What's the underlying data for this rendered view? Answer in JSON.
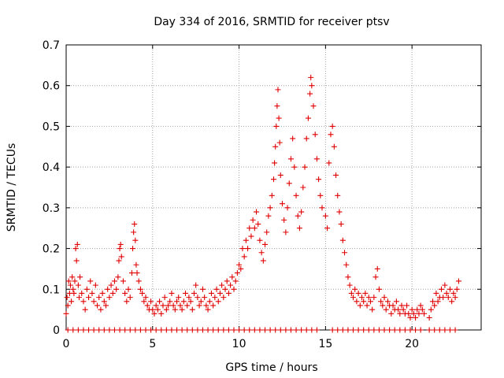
{
  "chart_data": {
    "type": "scatter",
    "title": "Day 334 of 2016, SRMTID for receiver ptsv",
    "xlabel": "GPS time / hours",
    "ylabel": "SRMTID / TECUs",
    "xlim": [
      0,
      24
    ],
    "ylim": [
      0,
      0.7
    ],
    "xticks": [
      0,
      5,
      10,
      15,
      20
    ],
    "xtick_labels": [
      "0",
      "5",
      "10",
      "15",
      "20"
    ],
    "yticks": [
      0,
      0.1,
      0.2,
      0.3,
      0.4,
      0.5,
      0.6,
      0.7
    ],
    "ytick_labels": [
      "0",
      "0.1",
      "0.2",
      "0.3",
      "0.4",
      "0.5",
      "0.6",
      "0.7"
    ],
    "grid": true,
    "marker": "+",
    "color": "#e00000",
    "series": [
      {
        "name": "ptsv",
        "points": [
          [
            0.0,
            0.04
          ],
          [
            0.05,
            0.08
          ],
          [
            0.1,
            0.06
          ],
          [
            0.15,
            0.12
          ],
          [
            0.2,
            0.09
          ],
          [
            0.25,
            0.11
          ],
          [
            0.3,
            0.07
          ],
          [
            0.35,
            0.13
          ],
          [
            0.4,
            0.1
          ],
          [
            0.45,
            0.09
          ],
          [
            0.5,
            0.12
          ],
          [
            0.55,
            0.2
          ],
          [
            0.6,
            0.17
          ],
          [
            0.65,
            0.21
          ],
          [
            0.7,
            0.11
          ],
          [
            0.75,
            0.08
          ],
          [
            0.8,
            0.13
          ],
          [
            0.9,
            0.09
          ],
          [
            1.0,
            0.07
          ],
          [
            1.1,
            0.05
          ],
          [
            1.2,
            0.1
          ],
          [
            1.3,
            0.08
          ],
          [
            1.4,
            0.12
          ],
          [
            1.5,
            0.09
          ],
          [
            1.6,
            0.07
          ],
          [
            1.7,
            0.11
          ],
          [
            1.8,
            0.06
          ],
          [
            1.9,
            0.08
          ],
          [
            2.0,
            0.05
          ],
          [
            2.1,
            0.09
          ],
          [
            2.2,
            0.07
          ],
          [
            2.3,
            0.06
          ],
          [
            2.4,
            0.1
          ],
          [
            2.5,
            0.08
          ],
          [
            2.6,
            0.11
          ],
          [
            2.7,
            0.09
          ],
          [
            2.8,
            0.12
          ],
          [
            2.9,
            0.1
          ],
          [
            3.0,
            0.13
          ],
          [
            3.05,
            0.17
          ],
          [
            3.1,
            0.2
          ],
          [
            3.15,
            0.21
          ],
          [
            3.2,
            0.18
          ],
          [
            3.3,
            0.12
          ],
          [
            3.4,
            0.09
          ],
          [
            3.5,
            0.07
          ],
          [
            3.6,
            0.1
          ],
          [
            3.7,
            0.08
          ],
          [
            3.8,
            0.14
          ],
          [
            3.85,
            0.2
          ],
          [
            3.9,
            0.24
          ],
          [
            3.95,
            0.26
          ],
          [
            4.0,
            0.22
          ],
          [
            4.05,
            0.16
          ],
          [
            4.1,
            0.14
          ],
          [
            4.2,
            0.12
          ],
          [
            4.3,
            0.1
          ],
          [
            4.4,
            0.09
          ],
          [
            4.5,
            0.07
          ],
          [
            4.6,
            0.08
          ],
          [
            4.7,
            0.06
          ],
          [
            4.8,
            0.05
          ],
          [
            4.9,
            0.07
          ],
          [
            5.0,
            0.05
          ],
          [
            5.1,
            0.04
          ],
          [
            5.2,
            0.06
          ],
          [
            5.3,
            0.05
          ],
          [
            5.4,
            0.07
          ],
          [
            5.5,
            0.04
          ],
          [
            5.6,
            0.06
          ],
          [
            5.7,
            0.08
          ],
          [
            5.8,
            0.05
          ],
          [
            5.9,
            0.06
          ],
          [
            6.0,
            0.07
          ],
          [
            6.1,
            0.09
          ],
          [
            6.2,
            0.06
          ],
          [
            6.3,
            0.05
          ],
          [
            6.4,
            0.07
          ],
          [
            6.5,
            0.08
          ],
          [
            6.6,
            0.06
          ],
          [
            6.7,
            0.05
          ],
          [
            6.8,
            0.07
          ],
          [
            6.9,
            0.09
          ],
          [
            7.0,
            0.06
          ],
          [
            7.1,
            0.08
          ],
          [
            7.2,
            0.07
          ],
          [
            7.3,
            0.05
          ],
          [
            7.4,
            0.09
          ],
          [
            7.5,
            0.11
          ],
          [
            7.6,
            0.08
          ],
          [
            7.7,
            0.06
          ],
          [
            7.8,
            0.07
          ],
          [
            7.9,
            0.1
          ],
          [
            8.0,
            0.08
          ],
          [
            8.1,
            0.06
          ],
          [
            8.2,
            0.05
          ],
          [
            8.3,
            0.07
          ],
          [
            8.4,
            0.09
          ],
          [
            8.5,
            0.06
          ],
          [
            8.6,
            0.08
          ],
          [
            8.7,
            0.1
          ],
          [
            8.8,
            0.07
          ],
          [
            8.9,
            0.09
          ],
          [
            9.0,
            0.11
          ],
          [
            9.1,
            0.08
          ],
          [
            9.2,
            0.1
          ],
          [
            9.3,
            0.12
          ],
          [
            9.4,
            0.09
          ],
          [
            9.5,
            0.11
          ],
          [
            9.6,
            0.13
          ],
          [
            9.7,
            0.1
          ],
          [
            9.8,
            0.12
          ],
          [
            9.9,
            0.14
          ],
          [
            10.0,
            0.16
          ],
          [
            10.1,
            0.15
          ],
          [
            10.2,
            0.2
          ],
          [
            10.3,
            0.18
          ],
          [
            10.4,
            0.22
          ],
          [
            10.5,
            0.2
          ],
          [
            10.6,
            0.25
          ],
          [
            10.7,
            0.23
          ],
          [
            10.8,
            0.27
          ],
          [
            10.9,
            0.25
          ],
          [
            11.0,
            0.29
          ],
          [
            11.1,
            0.26
          ],
          [
            11.2,
            0.22
          ],
          [
            11.3,
            0.19
          ],
          [
            11.4,
            0.17
          ],
          [
            11.5,
            0.21
          ],
          [
            11.6,
            0.24
          ],
          [
            11.7,
            0.28
          ],
          [
            11.8,
            0.3
          ],
          [
            11.9,
            0.33
          ],
          [
            12.0,
            0.37
          ],
          [
            12.05,
            0.41
          ],
          [
            12.1,
            0.45
          ],
          [
            12.15,
            0.5
          ],
          [
            12.2,
            0.55
          ],
          [
            12.25,
            0.59
          ],
          [
            12.3,
            0.52
          ],
          [
            12.35,
            0.46
          ],
          [
            12.4,
            0.38
          ],
          [
            12.5,
            0.31
          ],
          [
            12.6,
            0.27
          ],
          [
            12.7,
            0.24
          ],
          [
            12.8,
            0.3
          ],
          [
            12.9,
            0.36
          ],
          [
            13.0,
            0.42
          ],
          [
            13.1,
            0.47
          ],
          [
            13.2,
            0.4
          ],
          [
            13.3,
            0.33
          ],
          [
            13.4,
            0.28
          ],
          [
            13.5,
            0.25
          ],
          [
            13.6,
            0.29
          ],
          [
            13.7,
            0.35
          ],
          [
            13.8,
            0.4
          ],
          [
            13.9,
            0.47
          ],
          [
            14.0,
            0.52
          ],
          [
            14.1,
            0.58
          ],
          [
            14.15,
            0.62
          ],
          [
            14.2,
            0.6
          ],
          [
            14.3,
            0.55
          ],
          [
            14.4,
            0.48
          ],
          [
            14.5,
            0.42
          ],
          [
            14.6,
            0.37
          ],
          [
            14.7,
            0.33
          ],
          [
            14.8,
            0.3
          ],
          [
            15.0,
            0.28
          ],
          [
            15.1,
            0.25
          ],
          [
            15.2,
            0.41
          ],
          [
            15.3,
            0.48
          ],
          [
            15.4,
            0.5
          ],
          [
            15.5,
            0.45
          ],
          [
            15.6,
            0.38
          ],
          [
            15.7,
            0.33
          ],
          [
            15.8,
            0.29
          ],
          [
            15.9,
            0.26
          ],
          [
            16.0,
            0.22
          ],
          [
            16.1,
            0.19
          ],
          [
            16.2,
            0.16
          ],
          [
            16.3,
            0.13
          ],
          [
            16.4,
            0.11
          ],
          [
            16.5,
            0.09
          ],
          [
            16.6,
            0.08
          ],
          [
            16.7,
            0.1
          ],
          [
            16.8,
            0.07
          ],
          [
            16.9,
            0.09
          ],
          [
            17.0,
            0.06
          ],
          [
            17.1,
            0.08
          ],
          [
            17.2,
            0.07
          ],
          [
            17.3,
            0.09
          ],
          [
            17.4,
            0.06
          ],
          [
            17.5,
            0.08
          ],
          [
            17.6,
            0.07
          ],
          [
            17.7,
            0.05
          ],
          [
            17.8,
            0.08
          ],
          [
            17.9,
            0.13
          ],
          [
            18.0,
            0.15
          ],
          [
            18.1,
            0.1
          ],
          [
            18.2,
            0.07
          ],
          [
            18.3,
            0.06
          ],
          [
            18.4,
            0.08
          ],
          [
            18.5,
            0.05
          ],
          [
            18.6,
            0.07
          ],
          [
            18.7,
            0.06
          ],
          [
            18.8,
            0.04
          ],
          [
            18.9,
            0.06
          ],
          [
            19.0,
            0.05
          ],
          [
            19.1,
            0.07
          ],
          [
            19.2,
            0.05
          ],
          [
            19.3,
            0.04
          ],
          [
            19.4,
            0.06
          ],
          [
            19.5,
            0.05
          ],
          [
            19.6,
            0.04
          ],
          [
            19.7,
            0.06
          ],
          [
            19.8,
            0.04
          ],
          [
            19.9,
            0.03
          ],
          [
            20.0,
            0.05
          ],
          [
            20.1,
            0.04
          ],
          [
            20.2,
            0.03
          ],
          [
            20.3,
            0.05
          ],
          [
            20.4,
            0.04
          ],
          [
            20.5,
            0.06
          ],
          [
            20.6,
            0.05
          ],
          [
            20.7,
            0.04
          ],
          [
            21.0,
            0.03
          ],
          [
            21.1,
            0.05
          ],
          [
            21.2,
            0.07
          ],
          [
            21.3,
            0.06
          ],
          [
            21.4,
            0.09
          ],
          [
            21.5,
            0.07
          ],
          [
            21.6,
            0.08
          ],
          [
            21.7,
            0.1
          ],
          [
            21.8,
            0.08
          ],
          [
            21.9,
            0.11
          ],
          [
            22.0,
            0.09
          ],
          [
            22.1,
            0.08
          ],
          [
            22.2,
            0.1
          ],
          [
            22.3,
            0.07
          ],
          [
            22.4,
            0.09
          ],
          [
            22.5,
            0.08
          ],
          [
            22.6,
            0.1
          ],
          [
            22.7,
            0.12
          ],
          [
            0.1,
            0.0
          ],
          [
            0.4,
            0.0
          ],
          [
            0.7,
            0.0
          ],
          [
            1.0,
            0.0
          ],
          [
            1.3,
            0.0
          ],
          [
            1.6,
            0.0
          ],
          [
            1.9,
            0.0
          ],
          [
            2.2,
            0.0
          ],
          [
            2.5,
            0.0
          ],
          [
            2.8,
            0.0
          ],
          [
            3.1,
            0.0
          ],
          [
            3.4,
            0.0
          ],
          [
            3.7,
            0.0
          ],
          [
            4.0,
            0.0
          ],
          [
            4.3,
            0.0
          ],
          [
            4.6,
            0.0
          ],
          [
            4.9,
            0.0
          ],
          [
            5.2,
            0.0
          ],
          [
            5.5,
            0.0
          ],
          [
            5.8,
            0.0
          ],
          [
            6.1,
            0.0
          ],
          [
            6.4,
            0.0
          ],
          [
            6.7,
            0.0
          ],
          [
            7.0,
            0.0
          ],
          [
            7.3,
            0.0
          ],
          [
            7.6,
            0.0
          ],
          [
            7.9,
            0.0
          ],
          [
            8.2,
            0.0
          ],
          [
            8.5,
            0.0
          ],
          [
            8.8,
            0.0
          ],
          [
            9.1,
            0.0
          ],
          [
            9.4,
            0.0
          ],
          [
            9.7,
            0.0
          ],
          [
            10.0,
            0.0
          ],
          [
            10.3,
            0.0
          ],
          [
            10.6,
            0.0
          ],
          [
            10.9,
            0.0
          ],
          [
            11.2,
            0.0
          ],
          [
            11.5,
            0.0
          ],
          [
            11.8,
            0.0
          ],
          [
            12.1,
            0.0
          ],
          [
            12.4,
            0.0
          ],
          [
            12.7,
            0.0
          ],
          [
            13.0,
            0.0
          ],
          [
            13.3,
            0.0
          ],
          [
            13.6,
            0.0
          ],
          [
            13.9,
            0.0
          ],
          [
            14.2,
            0.0
          ],
          [
            14.5,
            0.0
          ],
          [
            15.4,
            0.0
          ],
          [
            15.7,
            0.0
          ],
          [
            16.0,
            0.0
          ],
          [
            16.3,
            0.0
          ],
          [
            16.6,
            0.0
          ],
          [
            16.9,
            0.0
          ],
          [
            17.2,
            0.0
          ],
          [
            17.5,
            0.0
          ],
          [
            17.8,
            0.0
          ],
          [
            18.1,
            0.0
          ],
          [
            18.4,
            0.0
          ],
          [
            18.7,
            0.0
          ],
          [
            19.0,
            0.0
          ],
          [
            19.3,
            0.0
          ],
          [
            19.6,
            0.0
          ],
          [
            19.9,
            0.0
          ],
          [
            20.2,
            0.0
          ],
          [
            20.5,
            0.0
          ],
          [
            21.0,
            0.0
          ],
          [
            21.3,
            0.0
          ],
          [
            21.6,
            0.0
          ],
          [
            21.9,
            0.0
          ],
          [
            22.2,
            0.0
          ],
          [
            22.5,
            0.0
          ]
        ]
      }
    ]
  }
}
